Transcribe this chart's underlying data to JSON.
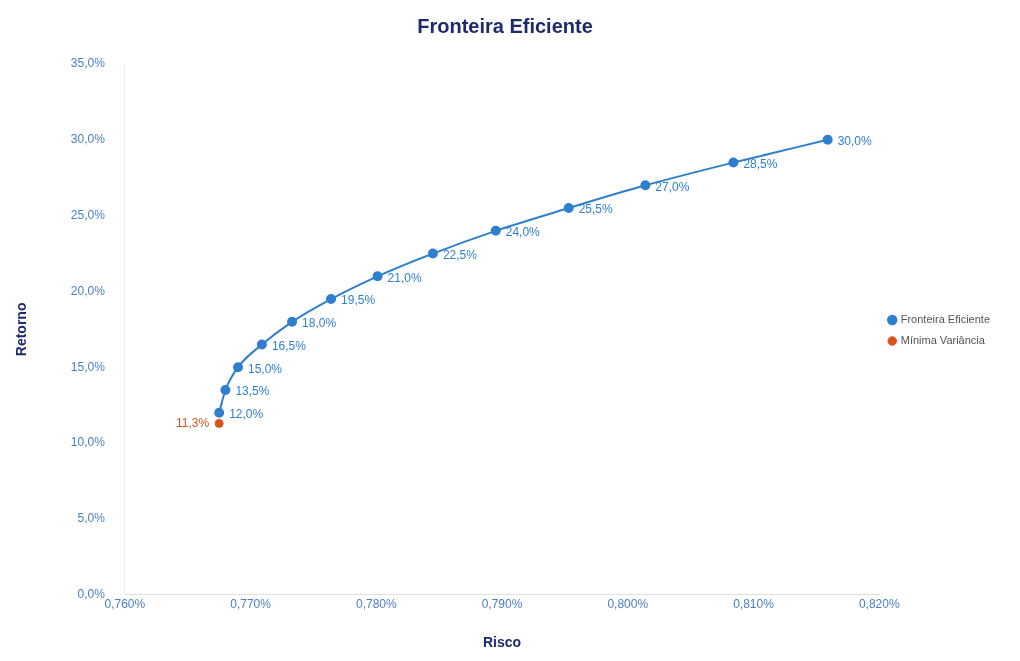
{
  "chart_data": {
    "type": "line",
    "title": "Fronteira Eficiente",
    "xlabel": "Risco",
    "ylabel": "Retorno",
    "xlim": [
      0.76,
      0.82
    ],
    "xticks": [
      {
        "value": 0.76,
        "label": "0,760%"
      },
      {
        "value": 0.77,
        "label": "0,770%"
      },
      {
        "value": 0.78,
        "label": "0,780%"
      },
      {
        "value": 0.79,
        "label": "0,790%"
      },
      {
        "value": 0.8,
        "label": "0,800%"
      },
      {
        "value": 0.81,
        "label": "0,810%"
      },
      {
        "value": 0.82,
        "label": "0,820%"
      }
    ],
    "ylim": [
      0,
      35
    ],
    "yticks": [
      {
        "value": 0,
        "label": "0,0%"
      },
      {
        "value": 5,
        "label": "5,0%"
      },
      {
        "value": 10,
        "label": "10,0%"
      },
      {
        "value": 15,
        "label": "15,0%"
      },
      {
        "value": 20,
        "label": "20,0%"
      },
      {
        "value": 25,
        "label": "25,0%"
      },
      {
        "value": 30,
        "label": "30,0%"
      },
      {
        "value": 35,
        "label": "35,0%"
      }
    ],
    "grid": false,
    "legend": "right",
    "marker": "circle",
    "line_style": "solid",
    "series": [
      {
        "name": "Fronteira Eficiente",
        "type": "line",
        "color": "#2f7fcf",
        "x": [
          0.7675,
          0.768,
          0.769,
          0.7709,
          0.7733,
          0.7764,
          0.7801,
          0.7845,
          0.7895,
          0.7953,
          0.8014,
          0.8084,
          0.8159
        ],
        "values": [
          12.0,
          13.5,
          15.0,
          16.5,
          18.0,
          19.5,
          21.0,
          22.5,
          24.0,
          25.5,
          27.0,
          28.5,
          30.0
        ],
        "value_labels": [
          "12,0%",
          "13,5%",
          "15,0%",
          "16,5%",
          "18,0%",
          "19,5%",
          "21,0%",
          "22,5%",
          "24,0%",
          "25,5%",
          "27,0%",
          "28,5%",
          "30,0%"
        ]
      },
      {
        "name": "Mínima Variância",
        "type": "scatter",
        "color": "#d9531e",
        "x": [
          0.7675
        ],
        "values": [
          11.3
        ],
        "value_labels": [
          "11,3%"
        ]
      }
    ]
  }
}
